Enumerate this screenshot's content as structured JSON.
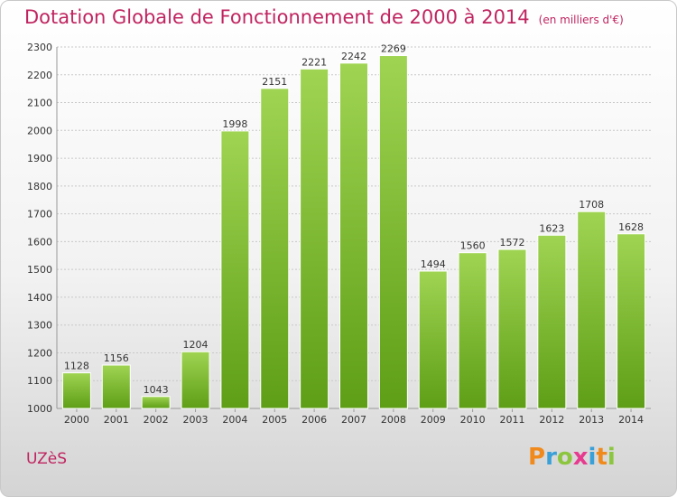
{
  "header": {
    "title": "Dotation Globale de Fonctionnement de 2000 à 2014",
    "subtitle": "(en milliers d'€)"
  },
  "footer": {
    "city": "UZèS",
    "logo_letters": [
      "P",
      "r",
      "o",
      "x",
      "i",
      "t",
      "i"
    ]
  },
  "colors": {
    "bar_top": "#9fd452",
    "bar_bottom": "#5e9e16",
    "title": "#c0245f",
    "grid": "#c8c8c8"
  },
  "chart_data": {
    "type": "bar",
    "title": "Dotation Globale de Fonctionnement de 2000 à 2014",
    "subtitle": "(en milliers d'€)",
    "categories": [
      "2000",
      "2001",
      "2002",
      "2003",
      "2004",
      "2005",
      "2006",
      "2007",
      "2008",
      "2009",
      "2010",
      "2011",
      "2012",
      "2013",
      "2014"
    ],
    "values": [
      1128,
      1156,
      1043,
      1204,
      1998,
      2151,
      2221,
      2242,
      2269,
      1494,
      1560,
      1572,
      1623,
      1708,
      1628
    ],
    "ylim": [
      1000,
      2300
    ],
    "yticks": [
      1000,
      1100,
      1200,
      1300,
      1400,
      1500,
      1600,
      1700,
      1800,
      1900,
      2000,
      2100,
      2200,
      2300
    ],
    "grid": true,
    "xlabel": "",
    "ylabel": ""
  }
}
